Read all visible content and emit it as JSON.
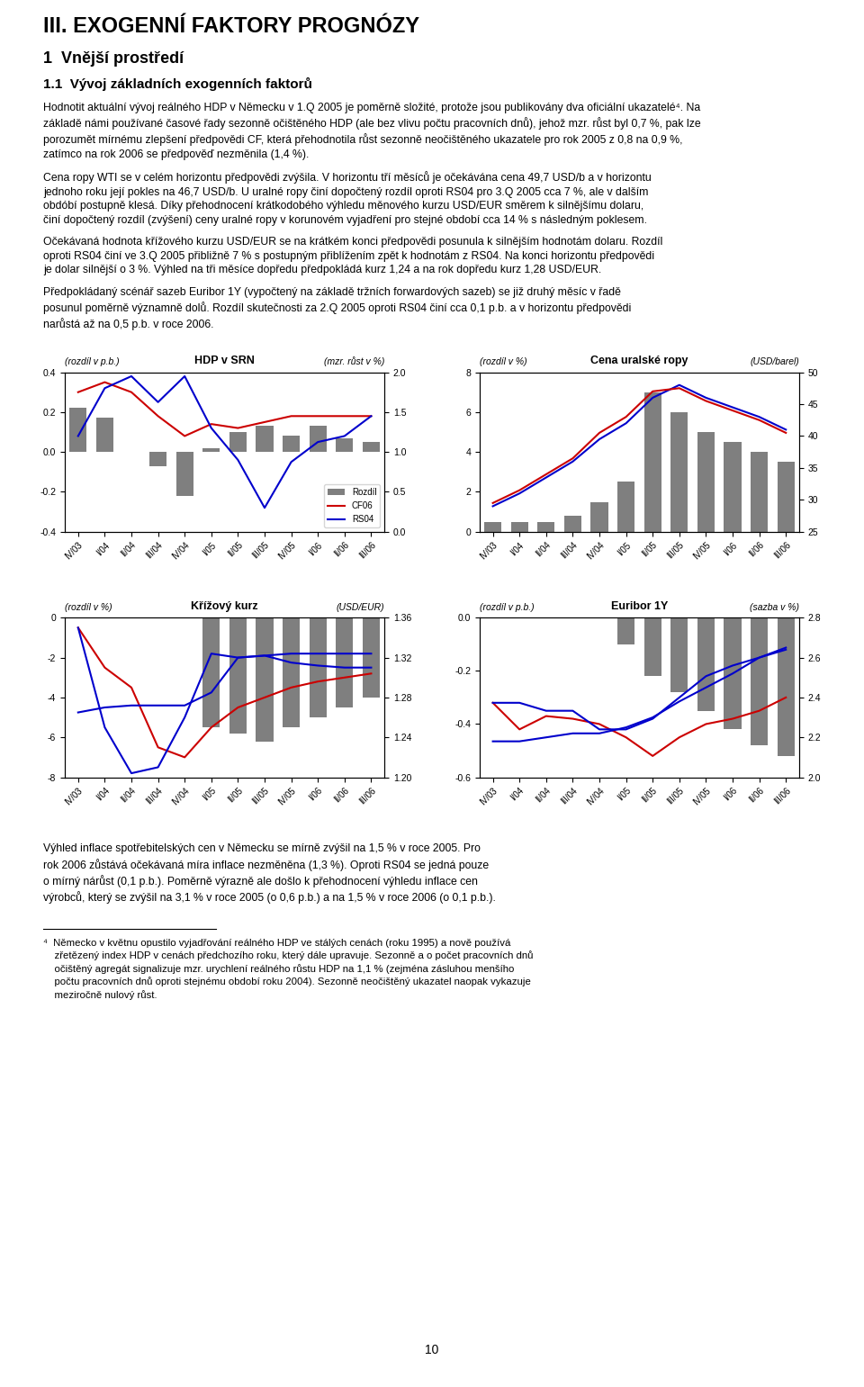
{
  "title": "III. EXOGENNÍ FAKTORY PROGNÓZY",
  "subtitle": [
    "1  Vnější prostředí",
    "1.1  Vývoj základních exogenních faktorů"
  ],
  "annotations": [
    "Hodnotit aktuální vývoj reálného HDP v Německu v 1.Q 2005 je poměrně složité, protože jsou publikovány dva oficiální ukazatelé⁴. Na\nzákladě námi používané časové řady sezonně očištěného HDP (ale bez vlivu počtu pracovních dnů), jehož mzr. růst byl 0,7 %, pak lze\nporozumět mírnému zlepšení předpovědi CF, která přehodnotila růst sezonně neočištěného ukazatele pro rok 2005 z 0,8 na 0,9 %,\nzatímco na rok 2006 se předpověď nezměnila (1,4 %).",
    "Cena ropy WTI se v celém horizontu předpovědi zvýšila. V horizontu tří měsíců je očekávána cena 49,7 USD/b a v horizontu\njednoho roku její pokles na 46,7 USD/b. U uralné ropy činí dopočtený rozdíl oproti RS04 pro 3.Q 2005 cca 7 %, ale v dalším\nobdóbí postupně klesá. Díky přehodnocení krátkodobého výhledu měnového kurzu USD/EUR směrem k silnějšímu dolaru,\nčiní dopočtený rozdíl (zvýšení) ceny uralné ropy v korunovém vyjadření pro stejné období cca 14 % s následným poklesem.",
    "Očekávaná hodnota křížového kurzu USD/EUR se na krátkém konci předpovědi posunula k silnějším hodnotám dolaru. Rozdíl\noproti RS04 činí ve 3.Q 2005 přibližně 7 % s postupným přiblížením zpět k hodnotám z RS04. Na konci horizontu předpovědi\nje dolar silnější o 3 %. Výhled na tři měsíce dopředu předpokládá kurz 1,24 a na rok dopředu kurz 1,28 USD/EUR.",
    "Předpokládaný scénář sazeb Euribor 1Y (vypočtený na základě tržních forwardových sazeb) se již druhý měsíc v řadě\nposunul poměrně významně dolů. Rozdíl skutečnosti za 2.Q 2005 oproti RS04 činí cca 0,1 p.b. a v horizontu předpovědi\nnarůstá až na 0,5 p.b. v roce 2006.",
    "Výhled inflace spotřebitelských cen v Německu se mírně zvýšil na 1,5 % v roce 2005. Pro\nrok 2006 zůstává očekávaná míra inflace nezměněna (1,3 %). Oproti RS04 se jedná pouze\no mírný nárůst (0,1 p.b.). Poměrně výrazně ale došlo k přehodnocení výhledu inflace cen\nvýrobců, který se zvýšil na 3,1 % v roce 2005 (o 0,6 p.b.) a na 1,5 % v roce 2006 (o 0,1 p.b.).",
    "⁴  Německo v květnu opustilo vyjadřování reálného HDP ve stálých cenách (roku 1995) a nově používá\n    zřetězený index HDP v cenách předchozího roku, který dále upravuje. Sezonně a o počet pracovních dnů\n    očištěný agregát signalizuje mzr. urychlení reálného růstu HDP na 1,1 % (zejména zásluhou menšího\n    počtu pracovních dnů oproti stejnému období roku 2004). Sezonně neočištěný ukazatel naopak vykazuje\n    meziročně nulový růst.",
    "10"
  ],
  "chart_data": [
    {
      "type": "bar",
      "title": "HDP v SRN",
      "ylabel": "(rozdíl v p.b.)",
      "y2label": "(mzr. růst v %)",
      "categories": [
        "IV/03",
        "I/04",
        "II/04",
        "III/04",
        "IV/04",
        "I/05",
        "II/05",
        "III/05",
        "IV/05",
        "I/06",
        "II/06",
        "III/06"
      ],
      "series": [
        {
          "name": "Rozdíl",
          "type": "bar",
          "color": "#7f7f7f",
          "values": [
            0.22,
            0.17,
            0.0,
            -0.07,
            -0.22,
            0.02,
            0.1,
            0.13,
            0.08,
            0.13,
            0.07,
            0.05
          ]
        },
        {
          "name": "CF06",
          "type": "line",
          "color": "#CC0000",
          "values": [
            0.3,
            0.35,
            0.3,
            0.18,
            0.08,
            0.14,
            0.12,
            0.15,
            0.18,
            0.18,
            0.18,
            0.18
          ]
        },
        {
          "name": "RS04",
          "type": "line",
          "color": "#0000CC",
          "values": [
            0.08,
            0.32,
            0.38,
            0.25,
            0.38,
            0.12,
            -0.04,
            -0.28,
            -0.05,
            0.05,
            0.08,
            0.18
          ]
        }
      ],
      "ylim": [
        -0.4,
        0.4
      ],
      "yticks": [
        -0.4,
        -0.2,
        0.0,
        0.2,
        0.4
      ],
      "y2lim": [
        0.0,
        2.0
      ],
      "y2ticks": [
        0.0,
        0.5,
        1.0,
        1.5,
        2.0
      ],
      "legend": "lower right"
    },
    {
      "type": "bar",
      "title": "Cena uralské ropy",
      "ylabel": "(rozdíl v %)",
      "y2label": "(USD/barel)",
      "categories": [
        "IV/03",
        "I/04",
        "II/04",
        "III/04",
        "IV/04",
        "I/05",
        "II/05",
        "III/05",
        "IV/05",
        "I/06",
        "II/06",
        "III/06"
      ],
      "series": [
        {
          "type": "bar",
          "color": "#7f7f7f",
          "values": [
            0.5,
            0.5,
            0.5,
            0.8,
            1.5,
            2.5,
            7.0,
            6.0,
            5.0,
            4.5,
            4.0,
            3.5
          ]
        },
        {
          "type": "line",
          "color": "#0000CC",
          "axis": "y2",
          "values": [
            29.0,
            31.0,
            33.5,
            36.0,
            39.5,
            42.0,
            46.0,
            48.0,
            46.0,
            44.5,
            43.0,
            41.0
          ]
        },
        {
          "type": "line",
          "color": "#CC0000",
          "axis": "y2",
          "values": [
            29.5,
            31.5,
            34.0,
            36.5,
            40.5,
            43.0,
            47.0,
            47.5,
            45.5,
            44.0,
            42.5,
            40.5
          ]
        }
      ],
      "ylim": [
        0,
        8
      ],
      "yticks": [
        0,
        2,
        4,
        6,
        8
      ],
      "y2lim": [
        25,
        50
      ],
      "y2ticks": [
        25,
        30,
        35,
        40,
        45,
        50
      ]
    },
    {
      "type": "bar",
      "title": "Křížový kurz",
      "ylabel": "(rozdíl v %)",
      "y2label": "(USD/EUR)",
      "categories": [
        "IV/03",
        "I/04",
        "II/04",
        "III/04",
        "IV/04",
        "I/05",
        "II/05",
        "III/05",
        "IV/05",
        "I/06",
        "II/06",
        "III/06"
      ],
      "series": [
        {
          "type": "bar",
          "color": "#7f7f7f",
          "values": [
            0.0,
            0.0,
            0.0,
            0.0,
            0.0,
            -5.5,
            -5.8,
            -6.2,
            -5.5,
            -5.0,
            -4.5,
            -4.0
          ]
        },
        {
          "type": "line",
          "color": "#CC0000",
          "values": [
            -0.5,
            -2.5,
            -3.5,
            -6.5,
            -7.0,
            -5.5,
            -4.5,
            -4.0,
            -3.5,
            -3.2,
            -3.0,
            -2.8
          ]
        },
        {
          "type": "line",
          "color": "#0000CC",
          "values": [
            -0.5,
            -5.5,
            -7.8,
            -7.5,
            -5.0,
            -1.8,
            -2.0,
            -1.9,
            -1.8,
            -1.8,
            -1.8,
            -1.8
          ]
        },
        {
          "type": "line",
          "color": "#0000CC",
          "axis": "y2",
          "values": [
            1.265,
            1.27,
            1.272,
            1.272,
            1.272,
            1.285,
            1.32,
            1.322,
            1.315,
            1.312,
            1.31,
            1.31
          ]
        }
      ],
      "ylim": [
        -8,
        0
      ],
      "yticks": [
        -8,
        -6,
        -4,
        -2,
        0
      ],
      "y2lim": [
        1.2,
        1.36
      ],
      "y2ticks": [
        {
          "value": 1.2,
          "label": "1.20"
        },
        1.24,
        1.28,
        1.32,
        1.36
      ]
    },
    {
      "type": "bar",
      "title": "Euribor 1Y",
      "ylabel": "(rozdíl v p.b.)",
      "y2label": "(sazba v %)",
      "categories": [
        "IV/03",
        "I/04",
        "II/04",
        "III/04",
        "IV/04",
        "I/05",
        "II/05",
        "III/05",
        "IV/05",
        "I/06",
        "II/06",
        "III/06"
      ],
      "series": [
        {
          "type": "bar",
          "color": "#7f7f7f",
          "values": [
            0.0,
            0.0,
            0.0,
            0.0,
            0.0,
            -0.1,
            -0.22,
            -0.28,
            -0.35,
            -0.42,
            -0.48,
            -0.52
          ]
        },
        {
          "type": "line",
          "color": "#CC0000",
          "values": [
            -0.32,
            -0.42,
            -0.37,
            -0.38,
            -0.4,
            -0.45,
            -0.52,
            -0.45,
            -0.4,
            -0.38,
            -0.35,
            -0.3
          ]
        },
        {
          "type": "line",
          "color": "#0000CC",
          "values": [
            -0.32,
            -0.32,
            -0.35,
            -0.35,
            -0.42,
            -0.42,
            -0.38,
            -0.3,
            -0.22,
            -0.18,
            -0.15,
            -0.12
          ]
        },
        {
          "type": "line",
          "color": "#0000CC",
          "axis": "y2",
          "values": [
            2.18,
            2.18,
            2.2,
            2.22,
            2.22,
            2.25,
            2.3,
            2.38,
            2.45,
            2.52,
            2.6,
            2.65
          ]
        }
      ],
      "ylim": [
        -0.6,
        0.0
      ],
      "yticks": [
        -0.6,
        -0.4,
        -0.2,
        0.0
      ],
      "y2lim": [
        2.0,
        2.8
      ],
      "y2ticks": [
        2.0,
        2.2,
        2.4,
        2.6,
        2.8
      ]
    }
  ]
}
